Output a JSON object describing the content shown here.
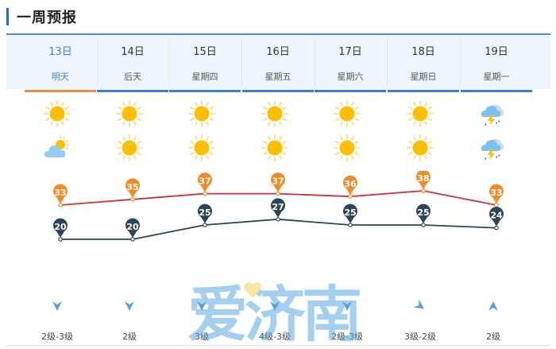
{
  "section": {
    "title": "一周预报"
  },
  "colors": {
    "accent_blue": "#4a90d9",
    "active_underline": "#f08c3a",
    "inactive_underline": "#3a7fd5",
    "high_line": "#cc3333",
    "high_marker": "#f08c28",
    "low_line": "#2e4457",
    "low_marker": "#2e4457",
    "wind_arrow": "#5aa0d6"
  },
  "days": [
    {
      "date": "13日",
      "label": "明天",
      "active": true,
      "day_icon": "sunny-icon",
      "night_icon": "partly-cloudy-icon",
      "high": "33",
      "low": "20",
      "wind_dir": "north",
      "wind": "2级-3级"
    },
    {
      "date": "14日",
      "label": "后天",
      "active": false,
      "day_icon": "sunny-icon",
      "night_icon": "sunny-icon",
      "high": "35",
      "low": "20",
      "wind_dir": "north",
      "wind": "2级"
    },
    {
      "date": "15日",
      "label": "星期四",
      "active": false,
      "day_icon": "sunny-icon",
      "night_icon": "sunny-icon",
      "high": "37",
      "low": "25",
      "wind_dir": "north",
      "wind": "3级"
    },
    {
      "date": "16日",
      "label": "星期五",
      "active": false,
      "day_icon": "sunny-icon",
      "night_icon": "sunny-icon",
      "high": "37",
      "low": "27",
      "wind_dir": "north",
      "wind": "4级-3级"
    },
    {
      "date": "17日",
      "label": "星期六",
      "active": false,
      "day_icon": "sunny-icon",
      "night_icon": "sunny-icon",
      "high": "36",
      "low": "25",
      "wind_dir": "north",
      "wind": "2级-3级"
    },
    {
      "date": "18日",
      "label": "星期日",
      "active": false,
      "day_icon": "sunny-icon",
      "night_icon": "sunny-icon",
      "high": "38",
      "low": "25",
      "wind_dir": "northwest",
      "wind": "3级-2级"
    },
    {
      "date": "19日",
      "label": "星期一",
      "active": false,
      "day_icon": "thunderstorm-icon",
      "night_icon": "thunderstorm-icon",
      "high": "33",
      "low": "24",
      "wind_dir": "south",
      "wind": "2级"
    }
  ],
  "watermark": {
    "text": "爱济南"
  }
}
